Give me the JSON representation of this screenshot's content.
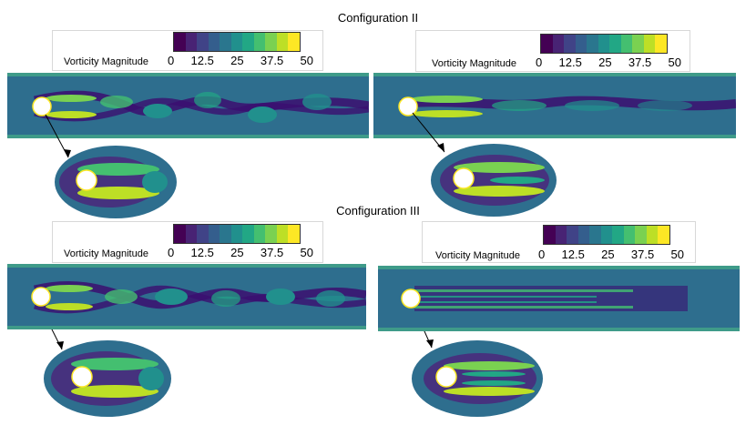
{
  "configs": [
    {
      "title": "Configuration II"
    },
    {
      "title": "Configuration III"
    }
  ],
  "legend": {
    "label": "Vorticity Magnitude",
    "ticks": [
      "0",
      "12.5",
      "25",
      "37.5",
      "50"
    ],
    "colors": [
      "#440154",
      "#482374",
      "#404387",
      "#345e8d",
      "#2a768e",
      "#21908d",
      "#22a785",
      "#44bf70",
      "#7ad151",
      "#bddf26",
      "#fde725"
    ]
  },
  "panel_colors": {
    "background": "#2e6e8e",
    "wake_dark": "#3b0f70",
    "ring_green": "#2ab07f",
    "ring_yellow": "#fde725",
    "ring_dark": "#46327e"
  }
}
